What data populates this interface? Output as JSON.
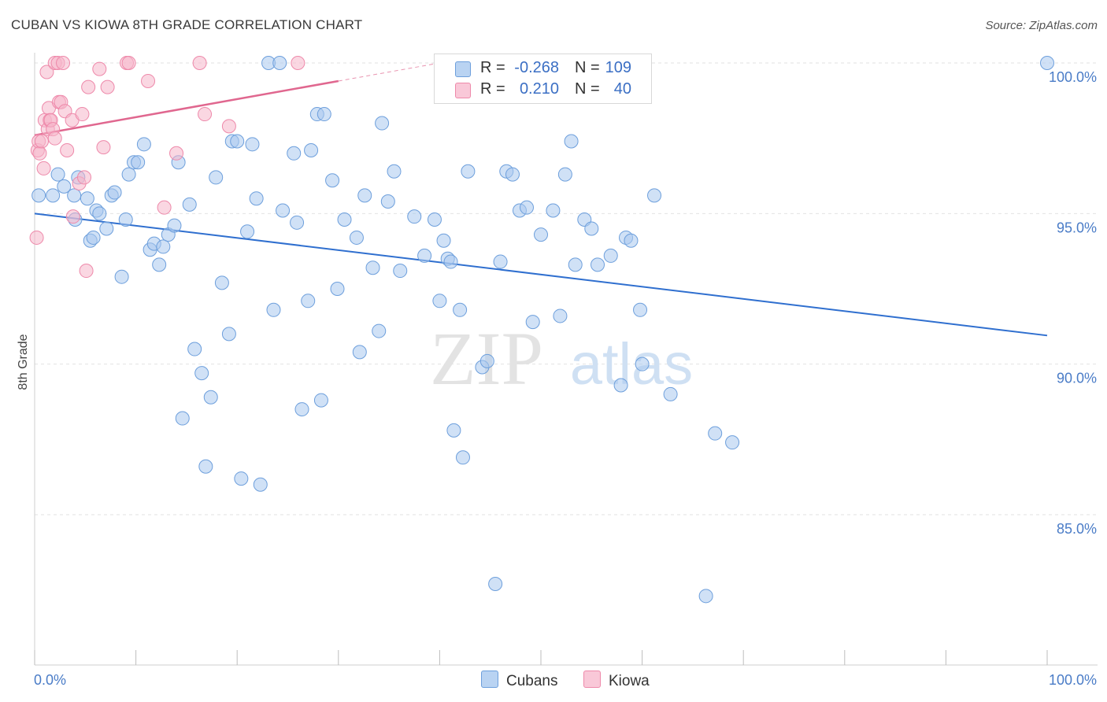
{
  "header": {
    "title": "CUBAN VS KIOWA 8TH GRADE CORRELATION CHART",
    "source": "Source: ZipAtlas.com"
  },
  "watermark": {
    "part1": "ZIP",
    "part2": "atlas"
  },
  "legend": {
    "cubans": {
      "r_label": "R =",
      "r_value": "-0.268",
      "n_label": "N =",
      "n_value": "109"
    },
    "kiowa": {
      "r_label": "R =",
      "r_value": "0.210",
      "n_label": "N =",
      "n_value": "40"
    }
  },
  "bottom_legend": {
    "cubans": "Cubans",
    "kiowa": "Kiowa"
  },
  "colors": {
    "cubans_fill": "#a9c8ef",
    "cubans_stroke": "#6d9fdc",
    "cubans_line": "#2f6fcf",
    "kiowa_fill": "#f6b7cb",
    "kiowa_stroke": "#ee89aa",
    "kiowa_line": "#e0678f",
    "axis_text": "#4a7cc7",
    "grid": "#e2e2e2"
  },
  "chart_data": {
    "type": "scatter",
    "title": "CUBAN VS KIOWA 8TH GRADE CORRELATION CHART",
    "xlabel": "",
    "ylabel": "8th Grade",
    "xlim": [
      0,
      100
    ],
    "ylim": [
      80.5,
      100.8
    ],
    "x_tick_labels": [
      "0.0%",
      "100.0%"
    ],
    "y_ticks": [
      85,
      90,
      95,
      100
    ],
    "y_tick_labels": [
      "85.0%",
      "90.0%",
      "95.0%",
      "100.0%"
    ],
    "series": [
      {
        "name": "Cubans",
        "r": -0.268,
        "n": 109,
        "trend": {
          "x": [
            0,
            100
          ],
          "y": [
            95.0,
            90.95
          ]
        },
        "points": [
          [
            0.4,
            95.6
          ],
          [
            1.8,
            95.6
          ],
          [
            2.3,
            96.3
          ],
          [
            2.9,
            95.9
          ],
          [
            3.9,
            95.6
          ],
          [
            4.0,
            94.8
          ],
          [
            4.3,
            96.2
          ],
          [
            5.2,
            95.5
          ],
          [
            5.5,
            94.1
          ],
          [
            5.8,
            94.2
          ],
          [
            6.1,
            95.1
          ],
          [
            6.4,
            95.0
          ],
          [
            7.1,
            94.5
          ],
          [
            7.6,
            95.6
          ],
          [
            7.9,
            95.7
          ],
          [
            8.6,
            92.9
          ],
          [
            9.0,
            94.8
          ],
          [
            9.3,
            96.3
          ],
          [
            9.8,
            96.7
          ],
          [
            10.2,
            96.7
          ],
          [
            10.8,
            97.3
          ],
          [
            11.4,
            93.8
          ],
          [
            11.8,
            94.0
          ],
          [
            12.3,
            93.3
          ],
          [
            12.7,
            93.9
          ],
          [
            13.2,
            94.3
          ],
          [
            13.8,
            94.6
          ],
          [
            14.2,
            96.7
          ],
          [
            14.6,
            88.2
          ],
          [
            15.3,
            95.3
          ],
          [
            15.8,
            90.5
          ],
          [
            16.5,
            89.7
          ],
          [
            16.9,
            86.6
          ],
          [
            17.4,
            88.9
          ],
          [
            17.9,
            96.2
          ],
          [
            18.5,
            92.7
          ],
          [
            19.2,
            91.0
          ],
          [
            19.5,
            97.4
          ],
          [
            20.0,
            97.4
          ],
          [
            20.4,
            86.2
          ],
          [
            21.0,
            94.4
          ],
          [
            21.5,
            97.3
          ],
          [
            21.9,
            95.5
          ],
          [
            22.3,
            86.0
          ],
          [
            23.1,
            100.0
          ],
          [
            23.6,
            91.8
          ],
          [
            24.2,
            100.0
          ],
          [
            24.5,
            95.1
          ],
          [
            25.6,
            97.0
          ],
          [
            25.9,
            94.7
          ],
          [
            26.4,
            88.5
          ],
          [
            27.0,
            92.1
          ],
          [
            27.3,
            97.1
          ],
          [
            27.9,
            98.3
          ],
          [
            28.3,
            88.8
          ],
          [
            28.6,
            98.3
          ],
          [
            29.4,
            96.1
          ],
          [
            29.9,
            92.5
          ],
          [
            30.6,
            94.8
          ],
          [
            31.8,
            94.2
          ],
          [
            32.1,
            90.4
          ],
          [
            32.6,
            95.6
          ],
          [
            33.4,
            93.2
          ],
          [
            34.0,
            91.1
          ],
          [
            34.3,
            98.0
          ],
          [
            34.9,
            95.4
          ],
          [
            35.5,
            96.4
          ],
          [
            36.1,
            93.1
          ],
          [
            37.5,
            94.9
          ],
          [
            38.5,
            93.6
          ],
          [
            39.5,
            94.8
          ],
          [
            40.0,
            92.1
          ],
          [
            40.4,
            94.1
          ],
          [
            40.8,
            93.5
          ],
          [
            41.1,
            93.4
          ],
          [
            41.4,
            87.8
          ],
          [
            42.0,
            91.8
          ],
          [
            42.3,
            86.9
          ],
          [
            42.8,
            96.4
          ],
          [
            44.2,
            89.9
          ],
          [
            44.7,
            90.1
          ],
          [
            45.5,
            82.7
          ],
          [
            46.0,
            93.4
          ],
          [
            46.6,
            96.4
          ],
          [
            47.2,
            96.3
          ],
          [
            47.9,
            95.1
          ],
          [
            48.6,
            95.2
          ],
          [
            49.2,
            91.4
          ],
          [
            50.0,
            94.3
          ],
          [
            51.2,
            95.1
          ],
          [
            51.9,
            91.6
          ],
          [
            52.4,
            96.3
          ],
          [
            53.0,
            97.4
          ],
          [
            53.4,
            93.3
          ],
          [
            54.3,
            94.8
          ],
          [
            55.0,
            94.5
          ],
          [
            55.6,
            93.3
          ],
          [
            56.9,
            93.6
          ],
          [
            57.9,
            89.3
          ],
          [
            58.4,
            94.2
          ],
          [
            58.9,
            94.1
          ],
          [
            59.8,
            91.8
          ],
          [
            60.0,
            90.0
          ],
          [
            61.2,
            95.6
          ],
          [
            62.8,
            89.0
          ],
          [
            66.3,
            82.3
          ],
          [
            67.2,
            87.7
          ],
          [
            68.9,
            87.4
          ],
          [
            100.0,
            100.0
          ]
        ]
      },
      {
        "name": "Kiowa",
        "r": 0.21,
        "n": 40,
        "trend_solid": {
          "x": [
            0,
            30
          ],
          "y": [
            97.6,
            99.4
          ]
        },
        "trend_dashed": {
          "x": [
            30,
            40
          ],
          "y": [
            99.4,
            100.0
          ]
        },
        "points": [
          [
            0.2,
            94.2
          ],
          [
            0.3,
            97.1
          ],
          [
            0.4,
            97.4
          ],
          [
            0.5,
            97.0
          ],
          [
            0.7,
            97.4
          ],
          [
            0.9,
            96.5
          ],
          [
            1.0,
            98.1
          ],
          [
            1.2,
            99.7
          ],
          [
            1.3,
            97.8
          ],
          [
            1.4,
            98.5
          ],
          [
            1.5,
            98.1
          ],
          [
            1.6,
            98.1
          ],
          [
            1.8,
            97.8
          ],
          [
            2.0,
            97.5
          ],
          [
            2.0,
            100.0
          ],
          [
            2.3,
            100.0
          ],
          [
            2.4,
            98.7
          ],
          [
            2.6,
            98.7
          ],
          [
            2.8,
            100.0
          ],
          [
            3.0,
            98.4
          ],
          [
            3.2,
            97.1
          ],
          [
            3.7,
            98.1
          ],
          [
            3.8,
            94.9
          ],
          [
            4.4,
            96.0
          ],
          [
            4.7,
            98.3
          ],
          [
            4.9,
            96.2
          ],
          [
            5.1,
            93.1
          ],
          [
            5.3,
            99.2
          ],
          [
            6.4,
            99.8
          ],
          [
            6.8,
            97.2
          ],
          [
            7.2,
            99.2
          ],
          [
            9.1,
            100.0
          ],
          [
            9.3,
            100.0
          ],
          [
            11.2,
            99.4
          ],
          [
            12.8,
            95.2
          ],
          [
            14.0,
            97.0
          ],
          [
            16.3,
            100.0
          ],
          [
            16.8,
            98.3
          ],
          [
            19.2,
            97.9
          ],
          [
            26.0,
            100.0
          ]
        ]
      }
    ]
  }
}
